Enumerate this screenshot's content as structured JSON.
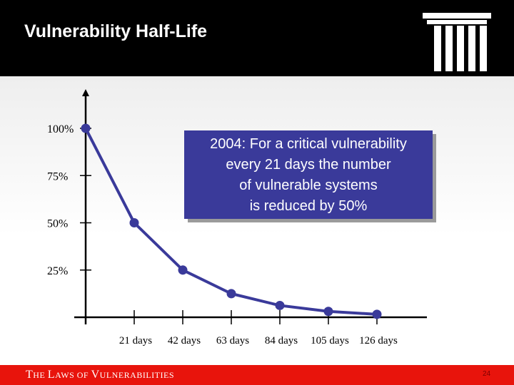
{
  "header": {
    "title": "Vulnerability Half-Life",
    "logo_icon": "column-pillar-icon"
  },
  "callout": {
    "lines": [
      "2004: For a critical vulnerability",
      "every 21 days the number",
      "of vulnerable systems",
      "is reduced by 50%"
    ]
  },
  "footer": {
    "parts": [
      {
        "text": "T",
        "small": false
      },
      {
        "text": "HE ",
        "small": true
      },
      {
        "text": "L",
        "small": false
      },
      {
        "text": "AWS OF ",
        "small": true
      },
      {
        "text": "V",
        "small": false
      },
      {
        "text": "ULNERABILITIES",
        "small": true
      }
    ],
    "page_number": "24"
  },
  "colors": {
    "header_bg": "#000000",
    "line": "#3a3a9a",
    "callout_bg": "#3a3a9a",
    "footer_bg": "#e8140c"
  },
  "chart_data": {
    "type": "line",
    "x": [
      0,
      21,
      42,
      63,
      84,
      105,
      126
    ],
    "values": [
      100,
      50,
      25,
      12.5,
      6.25,
      3.125,
      1.5625
    ],
    "xtick_labels": [
      "21 days",
      "42 days",
      "63 days",
      "84 days",
      "105 days",
      "126 days"
    ],
    "xtick_values": [
      21,
      42,
      63,
      84,
      105,
      126
    ],
    "ytick_labels": [
      "100%",
      "75%",
      "50%",
      "25%"
    ],
    "ytick_values": [
      100,
      75,
      50,
      25
    ],
    "xlim": [
      0,
      126
    ],
    "ylim": [
      0,
      100
    ],
    "grid": false,
    "title": "",
    "xlabel": "",
    "ylabel": ""
  }
}
